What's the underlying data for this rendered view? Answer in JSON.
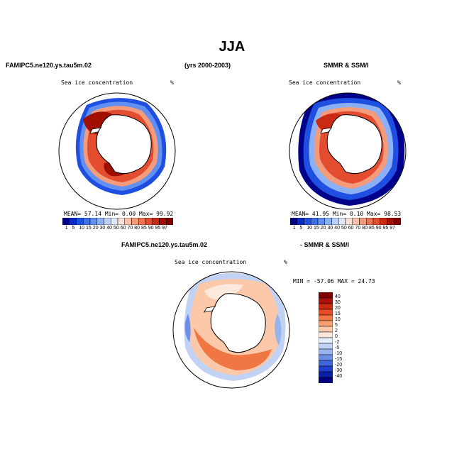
{
  "page_title": "JJA",
  "top_left_header": "FAMIPC5.ne120.ys.tau5m.02",
  "top_center_header": "(yrs 2000-2003)",
  "top_right_header": "SMMR & SSM/I",
  "bottom_header_left": "FAMIPC5.ne120.ys.tau5m.02",
  "bottom_header_right": "- SMMR & SSM/I",
  "panels": {
    "model": {
      "subtitle": "Sea ice concentration",
      "units": "%",
      "stats": {
        "mean_label": "MEAN=",
        "mean": "57.14",
        "min_label": "Min=",
        "min": "0.00",
        "max_label": "Max=",
        "max": "99.92"
      },
      "colorbar_labels": [
        "1",
        "5",
        "10",
        "15",
        "20",
        "30",
        "40",
        "50",
        "60",
        "70",
        "80",
        "85",
        "90",
        "95",
        "97"
      ]
    },
    "obs": {
      "subtitle": "Sea ice concentration",
      "units": "%",
      "stats": {
        "mean_label": "MEAN=",
        "mean": "41.95",
        "min_label": "Min=",
        "min": "0.10",
        "max_label": "Max=",
        "max": "98.53"
      },
      "colorbar_labels": [
        "1",
        "5",
        "10",
        "15",
        "20",
        "30",
        "40",
        "50",
        "60",
        "70",
        "80",
        "85",
        "90",
        "95",
        "97"
      ]
    },
    "diff": {
      "subtitle": "Sea ice concentration",
      "units": "%",
      "minmax_text": "MIN = -57.06 MAX =  24.73",
      "colorbar_labels": [
        "40",
        "30",
        "20",
        "15",
        "10",
        "5",
        "2",
        "0",
        "-2",
        "-5",
        "-10",
        "-15",
        "-20",
        "-30",
        "-40"
      ]
    }
  },
  "colors": {
    "concentration_scale": [
      "#00008b",
      "#0a2bc8",
      "#1f4fe0",
      "#3d72ea",
      "#6190f2",
      "#8cb0f6",
      "#b8cff8",
      "#dde8fb",
      "#fbe0d4",
      "#f8c0a8",
      "#f49b7c",
      "#ef7452",
      "#e44c30",
      "#c82a14",
      "#a00f00",
      "#800000"
    ],
    "difference_scale": [
      "#800000",
      "#a8120a",
      "#cc2a10",
      "#e44c24",
      "#f07644",
      "#f79e72",
      "#fbc9aa",
      "#fde8dc",
      "#e3ecf9",
      "#c1d2f4",
      "#98b3ee",
      "#6b8fe6",
      "#3f67dc",
      "#1f3fcc",
      "#0b1fa6",
      "#000080"
    ],
    "land": "#ffffff",
    "coast": "#000000"
  }
}
